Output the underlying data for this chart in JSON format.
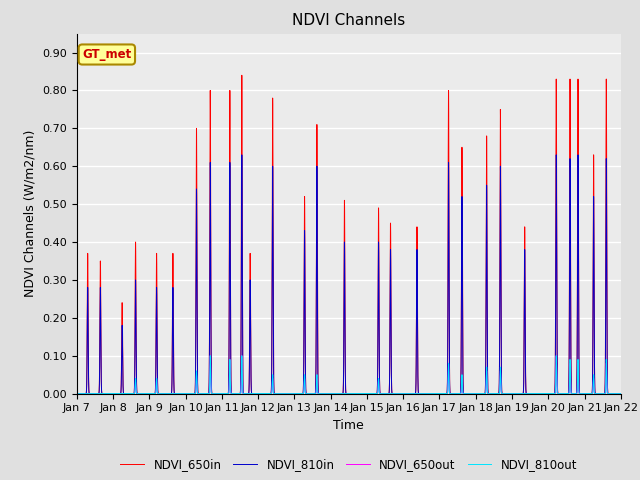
{
  "title": "NDVI Channels",
  "xlabel": "Time",
  "ylabel": "NDVI Channels (W/m2/nm)",
  "ylim": [
    0.0,
    0.95
  ],
  "yticks": [
    0.0,
    0.1,
    0.2,
    0.3,
    0.4,
    0.5,
    0.6,
    0.7,
    0.8,
    0.9
  ],
  "bg_color": "#e0e0e0",
  "plot_bg_color": "#ebebeb",
  "grid_color": "#ffffff",
  "line_colors": {
    "NDVI_650in": "#ff0000",
    "NDVI_810in": "#0000cc",
    "NDVI_650out": "#ff00ff",
    "NDVI_810out": "#00e5ff"
  },
  "gt_met_label": "GT_met",
  "gt_met_color": "#cc0000",
  "gt_met_bg": "#ffff99",
  "gt_met_edge": "#aa8800",
  "xtick_labels": [
    "Jan 7",
    "Jan 8",
    "Jan 9",
    "Jan 10",
    "Jan 11",
    "Jan 12",
    "Jan 13",
    "Jan 14",
    "Jan 15",
    "Jan 16",
    "Jan 17",
    "Jan 18",
    "Jan 19",
    "Jan 20",
    "Jan 21",
    "Jan 22"
  ],
  "day_spike_times": [
    [
      0.3,
      0.65
    ],
    [
      0.25,
      0.62
    ],
    [
      0.2,
      0.65
    ],
    [
      0.3,
      0.68
    ],
    [
      0.22,
      0.55,
      0.78
    ],
    [
      0.4
    ],
    [
      0.28,
      0.62
    ],
    [
      0.38
    ],
    [
      0.32,
      0.65
    ],
    [
      0.38
    ],
    [
      0.25,
      0.62
    ],
    [
      0.3,
      0.68
    ],
    [
      0.35
    ],
    [
      0.22,
      0.6,
      0.82
    ],
    [
      0.25,
      0.6
    ]
  ],
  "spike_peaks_650in": [
    0.37,
    0.35,
    0.24,
    0.4,
    0.37,
    0.37,
    0.7,
    0.8,
    0.8,
    0.84,
    0.37,
    0.78,
    0.52,
    0.71,
    0.51,
    0.49,
    0.45,
    0.44,
    0.8,
    0.65,
    0.68,
    0.75,
    0.44,
    0.83,
    0.83,
    0.83,
    0.63,
    0.83,
    0.83
  ],
  "spike_peaks_810in": [
    0.28,
    0.28,
    0.18,
    0.3,
    0.28,
    0.28,
    0.54,
    0.61,
    0.61,
    0.63,
    0.3,
    0.6,
    0.43,
    0.6,
    0.4,
    0.4,
    0.38,
    0.38,
    0.61,
    0.52,
    0.55,
    0.6,
    0.38,
    0.63,
    0.62,
    0.63,
    0.52,
    0.62,
    0.62
  ],
  "spike_peaks_650out": [
    0.0,
    0.0,
    0.0,
    0.03,
    0.04,
    0.0,
    0.05,
    0.1,
    0.09,
    0.1,
    0.0,
    0.04,
    0.04,
    0.04,
    0.0,
    0.04,
    0.0,
    0.0,
    0.08,
    0.04,
    0.06,
    0.06,
    0.0,
    0.1,
    0.08,
    0.08,
    0.04,
    0.08,
    0.08
  ],
  "spike_peaks_810out": [
    0.0,
    0.0,
    0.0,
    0.04,
    0.04,
    0.0,
    0.06,
    0.1,
    0.09,
    0.1,
    0.0,
    0.05,
    0.05,
    0.05,
    0.0,
    0.04,
    0.0,
    0.0,
    0.08,
    0.05,
    0.07,
    0.07,
    0.0,
    0.1,
    0.09,
    0.09,
    0.05,
    0.09,
    0.09
  ]
}
